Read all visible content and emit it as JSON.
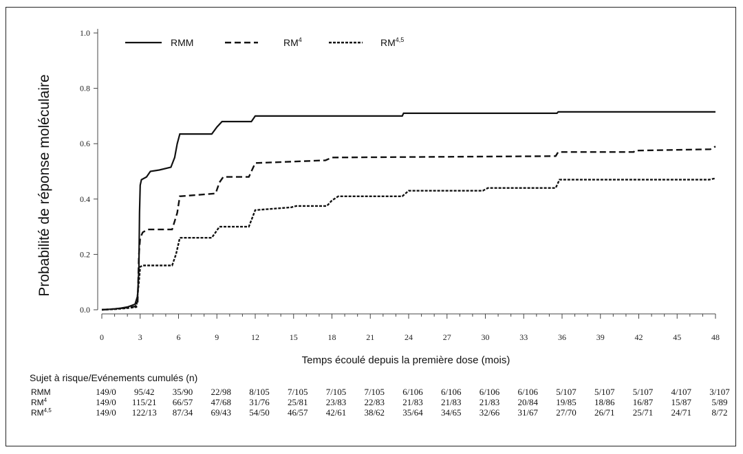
{
  "chart_data": {
    "type": "line",
    "title": "",
    "xlabel": "Temps écoulé depuis la première dose (mois)",
    "ylabel": "Probabilité de réponse moléculaire",
    "xlim": [
      0,
      48
    ],
    "ylim": [
      0,
      1.0
    ],
    "x_ticks": [
      "0",
      "3",
      "6",
      "9",
      "12",
      "15",
      "18",
      "21",
      "24",
      "27",
      "30",
      "33",
      "36",
      "39",
      "42",
      "45",
      "48"
    ],
    "y_ticks": [
      "0.0",
      "0.2",
      "0.4",
      "0.6",
      "0.8",
      "1.0"
    ],
    "legend_position": "top-left",
    "series": [
      {
        "name": "RMM",
        "style": "solid",
        "color": "#111111",
        "points": [
          [
            0,
            0
          ],
          [
            1,
            0.003
          ],
          [
            1.5,
            0.006
          ],
          [
            2,
            0.01
          ],
          [
            2.3,
            0.015
          ],
          [
            2.6,
            0.02
          ],
          [
            2.8,
            0.05
          ],
          [
            2.9,
            0.15
          ],
          [
            2.95,
            0.35
          ],
          [
            3.0,
            0.45
          ],
          [
            3.1,
            0.47
          ],
          [
            3.5,
            0.48
          ],
          [
            3.8,
            0.5
          ],
          [
            4.5,
            0.505
          ],
          [
            5.4,
            0.515
          ],
          [
            5.7,
            0.55
          ],
          [
            5.9,
            0.6
          ],
          [
            6.1,
            0.635
          ],
          [
            8.6,
            0.635
          ],
          [
            9.0,
            0.66
          ],
          [
            9.4,
            0.68
          ],
          [
            11.7,
            0.68
          ],
          [
            12.0,
            0.7
          ],
          [
            23.5,
            0.7
          ],
          [
            23.6,
            0.71
          ],
          [
            35.6,
            0.71
          ],
          [
            35.7,
            0.715
          ],
          [
            48,
            0.715
          ]
        ]
      },
      {
        "name": "RM4",
        "style": "dashed",
        "color": "#111111",
        "points": [
          [
            0,
            0
          ],
          [
            1,
            0.003
          ],
          [
            2,
            0.008
          ],
          [
            2.6,
            0.012
          ],
          [
            2.8,
            0.02
          ],
          [
            2.9,
            0.2
          ],
          [
            3.0,
            0.26
          ],
          [
            3.2,
            0.28
          ],
          [
            3.6,
            0.29
          ],
          [
            5.5,
            0.29
          ],
          [
            5.9,
            0.35
          ],
          [
            6.1,
            0.41
          ],
          [
            8.9,
            0.42
          ],
          [
            9.2,
            0.46
          ],
          [
            9.5,
            0.48
          ],
          [
            11.5,
            0.48
          ],
          [
            12.0,
            0.53
          ],
          [
            17.5,
            0.54
          ],
          [
            18.0,
            0.55
          ],
          [
            35.5,
            0.555
          ],
          [
            35.7,
            0.57
          ],
          [
            41.6,
            0.57
          ],
          [
            41.7,
            0.575
          ],
          [
            47.6,
            0.58
          ],
          [
            48,
            0.59
          ]
        ]
      },
      {
        "name": "RM4,5",
        "style": "dotted",
        "color": "#111111",
        "points": [
          [
            0,
            0
          ],
          [
            1,
            0.002
          ],
          [
            2,
            0.006
          ],
          [
            2.7,
            0.01
          ],
          [
            2.9,
            0.1
          ],
          [
            3.0,
            0.155
          ],
          [
            3.2,
            0.16
          ],
          [
            5.5,
            0.16
          ],
          [
            5.8,
            0.2
          ],
          [
            6.1,
            0.26
          ],
          [
            8.6,
            0.26
          ],
          [
            8.9,
            0.28
          ],
          [
            9.2,
            0.3
          ],
          [
            11.5,
            0.3
          ],
          [
            12.0,
            0.36
          ],
          [
            14.8,
            0.37
          ],
          [
            15.2,
            0.375
          ],
          [
            17.6,
            0.375
          ],
          [
            18.0,
            0.395
          ],
          [
            18.5,
            0.41
          ],
          [
            23.5,
            0.41
          ],
          [
            24.0,
            0.43
          ],
          [
            29.8,
            0.43
          ],
          [
            30.2,
            0.44
          ],
          [
            35.5,
            0.44
          ],
          [
            35.8,
            0.47
          ],
          [
            47.5,
            0.47
          ],
          [
            48,
            0.475
          ]
        ]
      }
    ],
    "legend": [
      {
        "label": "RMM",
        "style": "solid"
      },
      {
        "label": "RM",
        "sup": "4",
        "style": "dashed"
      },
      {
        "label": "RM",
        "sup": "4,5",
        "style": "dotted"
      }
    ]
  },
  "risk_table": {
    "title": "Sujet à risque/Evénements cumulés (n)",
    "rows": [
      {
        "label": "RMM",
        "sup": "",
        "values": [
          "149/0",
          "95/42",
          "35/90",
          "22/98",
          "8/105",
          "7/105",
          "7/105",
          "7/105",
          "6/106",
          "6/106",
          "6/106",
          "6/106",
          "5/107",
          "5/107",
          "5/107",
          "4/107",
          "3/107"
        ]
      },
      {
        "label": "RM",
        "sup": "4",
        "values": [
          "149/0",
          "115/21",
          "66/57",
          "47/68",
          "31/76",
          "25/81",
          "23/83",
          "22/83",
          "21/83",
          "21/83",
          "21/83",
          "20/84",
          "19/85",
          "18/86",
          "16/87",
          "15/87",
          "5/89"
        ]
      },
      {
        "label": "RM",
        "sup": "4,5",
        "values": [
          "149/0",
          "122/13",
          "87/34",
          "69/43",
          "54/50",
          "46/57",
          "42/61",
          "38/62",
          "35/64",
          "34/65",
          "32/66",
          "31/67",
          "27/70",
          "26/71",
          "25/71",
          "24/71",
          "8/72"
        ]
      }
    ]
  }
}
